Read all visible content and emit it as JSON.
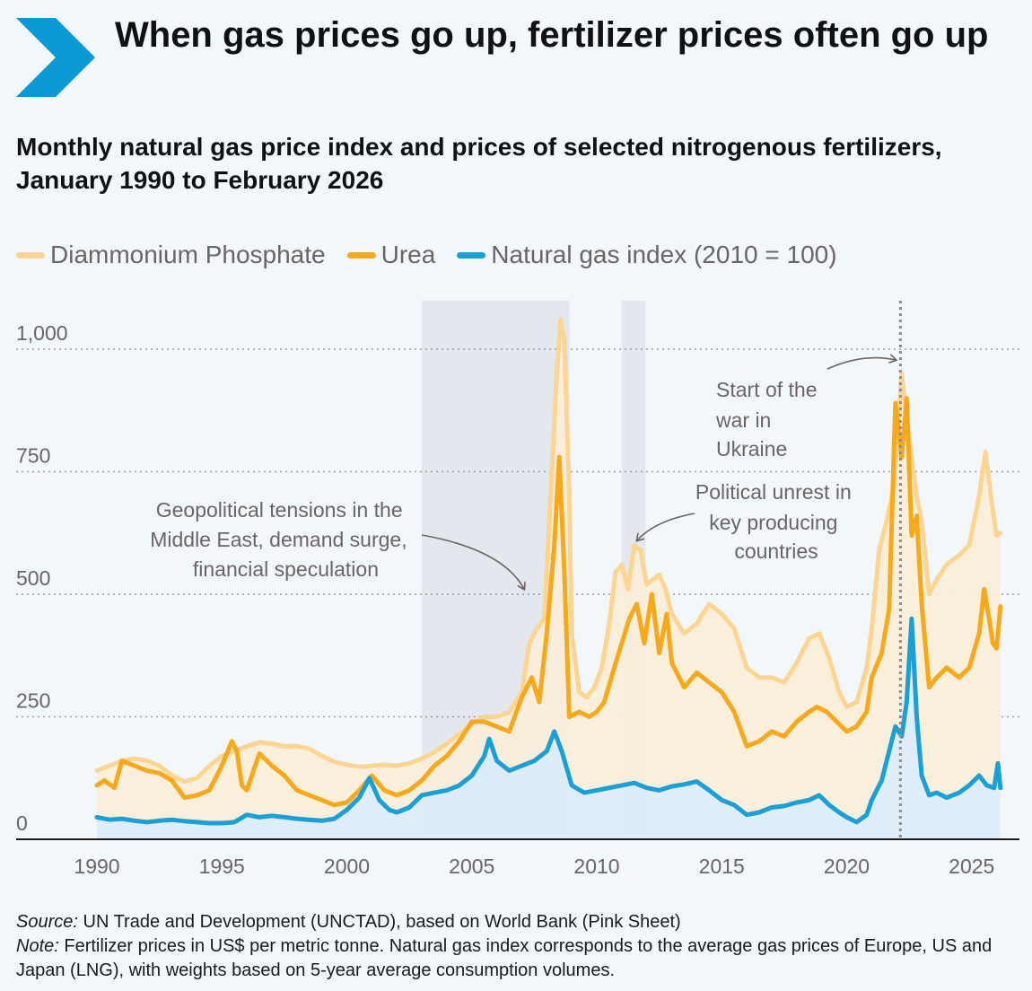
{
  "header": {
    "title": "When gas prices go up, fertilizer prices often go up",
    "subtitle": "Monthly natural gas price index and prices of selected nitrogenous fertilizers, January 1990 to February 2026"
  },
  "legend": [
    {
      "label": "Diammonium Phosphate",
      "color": "#fdd592"
    },
    {
      "label": "Urea",
      "color": "#f7a81b"
    },
    {
      "label": "Natural gas index (2010 = 100)",
      "color": "#1a9fd6"
    }
  ],
  "footer": {
    "source_label": "Source:",
    "source_text": "UN Trade and Development (UNCTAD), based on World Bank (Pink Sheet)",
    "note_label": "Note:",
    "note_text": "Fertilizer prices in US$ per metric tonne. Natural gas index corresponds to the average gas prices of Europe, US and Japan (LNG), with weights based on 5-year average consumption volumes."
  },
  "chart_data": {
    "type": "line",
    "title": "When gas prices go up, fertilizer prices often go up",
    "xlim": [
      1989.8,
      2026.6
    ],
    "ylim": [
      0,
      1050
    ],
    "yticks": [
      0,
      250,
      500,
      750,
      1000
    ],
    "ytick_labels": [
      "0",
      "250",
      "500",
      "750",
      "1,000"
    ],
    "xticks": [
      1990,
      1995,
      2000,
      2005,
      2010,
      2015,
      2020,
      2025
    ],
    "xtick_labels": [
      "1990",
      "1995",
      "2000",
      "2005",
      "2010",
      "2015",
      "2020",
      "2025"
    ],
    "shaded_periods": [
      [
        2003.0,
        2008.9
      ],
      [
        2011.0,
        2011.95
      ]
    ],
    "event_line": {
      "x": 2022.15,
      "label": "Start of the war in Ukraine"
    },
    "annotations": [
      {
        "text": "Geopolitical tensions in the Middle East, demand surge, financial speculation"
      },
      {
        "text": "Political unrest in key producing countries"
      },
      {
        "text": "Start of the war in Ukraine"
      }
    ],
    "series": [
      {
        "name": "Diammonium Phosphate",
        "color": "#fdd592",
        "points": [
          [
            1990,
            140
          ],
          [
            1990.5,
            150
          ],
          [
            1991,
            160
          ],
          [
            1991.5,
            165
          ],
          [
            1992,
            160
          ],
          [
            1992.5,
            150
          ],
          [
            1993,
            130
          ],
          [
            1993.5,
            118
          ],
          [
            1994,
            125
          ],
          [
            1994.5,
            150
          ],
          [
            1995,
            170
          ],
          [
            1995.5,
            180
          ],
          [
            1996,
            190
          ],
          [
            1996.5,
            198
          ],
          [
            1997,
            195
          ],
          [
            1997.5,
            190
          ],
          [
            1998,
            190
          ],
          [
            1998.5,
            185
          ],
          [
            1999,
            170
          ],
          [
            1999.5,
            158
          ],
          [
            2000,
            152
          ],
          [
            2000.5,
            148
          ],
          [
            2001,
            150
          ],
          [
            2001.5,
            152
          ],
          [
            2002,
            150
          ],
          [
            2002.5,
            155
          ],
          [
            2003,
            165
          ],
          [
            2003.5,
            178
          ],
          [
            2004,
            195
          ],
          [
            2004.5,
            215
          ],
          [
            2005,
            235
          ],
          [
            2005.5,
            250
          ],
          [
            2006,
            250
          ],
          [
            2006.5,
            260
          ],
          [
            2007,
            300
          ],
          [
            2007.3,
            400
          ],
          [
            2007.6,
            430
          ],
          [
            2007.9,
            450
          ],
          [
            2008.15,
            700
          ],
          [
            2008.4,
            950
          ],
          [
            2008.55,
            1060
          ],
          [
            2008.7,
            1020
          ],
          [
            2008.9,
            700
          ],
          [
            2009,
            420
          ],
          [
            2009.3,
            300
          ],
          [
            2009.6,
            290
          ],
          [
            2009.9,
            310
          ],
          [
            2010.2,
            350
          ],
          [
            2010.5,
            440
          ],
          [
            2010.75,
            545
          ],
          [
            2011,
            560
          ],
          [
            2011.25,
            510
          ],
          [
            2011.5,
            600
          ],
          [
            2011.75,
            590
          ],
          [
            2012,
            520
          ],
          [
            2012.5,
            540
          ],
          [
            2012.75,
            510
          ],
          [
            2013,
            460
          ],
          [
            2013.5,
            420
          ],
          [
            2014,
            440
          ],
          [
            2014.5,
            480
          ],
          [
            2015,
            460
          ],
          [
            2015.5,
            430
          ],
          [
            2016,
            350
          ],
          [
            2016.5,
            330
          ],
          [
            2017,
            330
          ],
          [
            2017.5,
            320
          ],
          [
            2018,
            360
          ],
          [
            2018.5,
            410
          ],
          [
            2018.9,
            420
          ],
          [
            2019.3,
            370
          ],
          [
            2019.7,
            300
          ],
          [
            2020,
            270
          ],
          [
            2020.4,
            280
          ],
          [
            2020.8,
            350
          ],
          [
            2021,
            430
          ],
          [
            2021.3,
            590
          ],
          [
            2021.6,
            650
          ],
          [
            2021.9,
            720
          ],
          [
            2022.2,
            950
          ],
          [
            2022.5,
            820
          ],
          [
            2022.8,
            700
          ],
          [
            2023,
            650
          ],
          [
            2023.3,
            500
          ],
          [
            2023.6,
            530
          ],
          [
            2024,
            560
          ],
          [
            2024.5,
            580
          ],
          [
            2024.9,
            600
          ],
          [
            2025.3,
            700
          ],
          [
            2025.55,
            790
          ],
          [
            2025.8,
            690
          ],
          [
            2026.0,
            620
          ],
          [
            2026.15,
            625
          ]
        ]
      },
      {
        "name": "Urea",
        "color": "#f7a81b",
        "points": [
          [
            1990,
            110
          ],
          [
            1990.3,
            120
          ],
          [
            1990.7,
            105
          ],
          [
            1991,
            160
          ],
          [
            1991.5,
            150
          ],
          [
            1992,
            140
          ],
          [
            1992.5,
            135
          ],
          [
            1993,
            120
          ],
          [
            1993.5,
            85
          ],
          [
            1994,
            90
          ],
          [
            1994.5,
            100
          ],
          [
            1995,
            150
          ],
          [
            1995.4,
            200
          ],
          [
            1995.6,
            180
          ],
          [
            1995.8,
            110
          ],
          [
            1996,
            100
          ],
          [
            1996.5,
            175
          ],
          [
            1996.8,
            160
          ],
          [
            1997,
            150
          ],
          [
            1997.5,
            130
          ],
          [
            1998,
            100
          ],
          [
            1998.5,
            90
          ],
          [
            1999,
            80
          ],
          [
            1999.5,
            70
          ],
          [
            2000,
            75
          ],
          [
            2000.5,
            100
          ],
          [
            2001,
            130
          ],
          [
            2001.5,
            100
          ],
          [
            2002,
            90
          ],
          [
            2002.5,
            100
          ],
          [
            2003,
            120
          ],
          [
            2003.5,
            150
          ],
          [
            2004,
            170
          ],
          [
            2004.5,
            200
          ],
          [
            2005,
            240
          ],
          [
            2005.5,
            240
          ],
          [
            2006,
            230
          ],
          [
            2006.5,
            220
          ],
          [
            2007,
            290
          ],
          [
            2007.4,
            330
          ],
          [
            2007.7,
            280
          ],
          [
            2008,
            420
          ],
          [
            2008.3,
            600
          ],
          [
            2008.5,
            780
          ],
          [
            2008.7,
            550
          ],
          [
            2008.9,
            250
          ],
          [
            2009.3,
            260
          ],
          [
            2009.7,
            250
          ],
          [
            2010,
            260
          ],
          [
            2010.3,
            280
          ],
          [
            2010.7,
            350
          ],
          [
            2011,
            400
          ],
          [
            2011.3,
            450
          ],
          [
            2011.6,
            480
          ],
          [
            2011.9,
            400
          ],
          [
            2012.2,
            500
          ],
          [
            2012.5,
            380
          ],
          [
            2012.8,
            460
          ],
          [
            2013,
            360
          ],
          [
            2013.5,
            310
          ],
          [
            2014,
            340
          ],
          [
            2014.5,
            320
          ],
          [
            2015,
            300
          ],
          [
            2015.5,
            260
          ],
          [
            2016,
            190
          ],
          [
            2016.5,
            200
          ],
          [
            2017,
            220
          ],
          [
            2017.5,
            210
          ],
          [
            2018,
            240
          ],
          [
            2018.5,
            260
          ],
          [
            2018.8,
            270
          ],
          [
            2019.2,
            260
          ],
          [
            2019.6,
            240
          ],
          [
            2020,
            220
          ],
          [
            2020.4,
            230
          ],
          [
            2020.8,
            260
          ],
          [
            2021,
            330
          ],
          [
            2021.4,
            380
          ],
          [
            2021.7,
            470
          ],
          [
            2021.95,
            890
          ],
          [
            2022.2,
            780
          ],
          [
            2022.4,
            900
          ],
          [
            2022.6,
            620
          ],
          [
            2022.8,
            660
          ],
          [
            2023,
            480
          ],
          [
            2023.3,
            310
          ],
          [
            2023.6,
            330
          ],
          [
            2024,
            350
          ],
          [
            2024.5,
            330
          ],
          [
            2024.9,
            350
          ],
          [
            2025.3,
            420
          ],
          [
            2025.5,
            510
          ],
          [
            2025.7,
            450
          ],
          [
            2025.85,
            400
          ],
          [
            2026.0,
            390
          ],
          [
            2026.15,
            475
          ]
        ]
      },
      {
        "name": "Natural gas index (2010 = 100)",
        "color": "#1a9fd6",
        "points": [
          [
            1990,
            45
          ],
          [
            1990.5,
            40
          ],
          [
            1991,
            42
          ],
          [
            1991.5,
            38
          ],
          [
            1992,
            35
          ],
          [
            1992.5,
            38
          ],
          [
            1993,
            40
          ],
          [
            1993.5,
            37
          ],
          [
            1994,
            35
          ],
          [
            1994.5,
            33
          ],
          [
            1995,
            33
          ],
          [
            1995.5,
            35
          ],
          [
            1996,
            50
          ],
          [
            1996.5,
            45
          ],
          [
            1997,
            48
          ],
          [
            1997.5,
            45
          ],
          [
            1998,
            42
          ],
          [
            1998.5,
            40
          ],
          [
            1999,
            38
          ],
          [
            1999.5,
            42
          ],
          [
            2000,
            60
          ],
          [
            2000.5,
            85
          ],
          [
            2000.9,
            125
          ],
          [
            2001.3,
            80
          ],
          [
            2001.7,
            60
          ],
          [
            2002,
            55
          ],
          [
            2002.5,
            65
          ],
          [
            2003,
            90
          ],
          [
            2003.5,
            95
          ],
          [
            2004,
            100
          ],
          [
            2004.5,
            110
          ],
          [
            2005,
            130
          ],
          [
            2005.5,
            170
          ],
          [
            2005.7,
            205
          ],
          [
            2006,
            160
          ],
          [
            2006.5,
            140
          ],
          [
            2007,
            150
          ],
          [
            2007.5,
            160
          ],
          [
            2008,
            180
          ],
          [
            2008.3,
            220
          ],
          [
            2008.6,
            180
          ],
          [
            2009,
            110
          ],
          [
            2009.5,
            95
          ],
          [
            2010,
            100
          ],
          [
            2010.5,
            105
          ],
          [
            2011,
            110
          ],
          [
            2011.5,
            115
          ],
          [
            2012,
            105
          ],
          [
            2012.5,
            100
          ],
          [
            2013,
            108
          ],
          [
            2013.5,
            112
          ],
          [
            2014,
            118
          ],
          [
            2014.5,
            100
          ],
          [
            2015,
            80
          ],
          [
            2015.5,
            70
          ],
          [
            2016,
            50
          ],
          [
            2016.5,
            55
          ],
          [
            2017,
            65
          ],
          [
            2017.5,
            68
          ],
          [
            2018,
            75
          ],
          [
            2018.5,
            80
          ],
          [
            2018.9,
            90
          ],
          [
            2019.3,
            70
          ],
          [
            2019.7,
            55
          ],
          [
            2020,
            45
          ],
          [
            2020.4,
            35
          ],
          [
            2020.8,
            50
          ],
          [
            2021,
            80
          ],
          [
            2021.4,
            120
          ],
          [
            2021.7,
            180
          ],
          [
            2021.95,
            230
          ],
          [
            2022.2,
            210
          ],
          [
            2022.4,
            280
          ],
          [
            2022.6,
            450
          ],
          [
            2022.8,
            250
          ],
          [
            2023,
            130
          ],
          [
            2023.3,
            90
          ],
          [
            2023.6,
            95
          ],
          [
            2024,
            85
          ],
          [
            2024.5,
            95
          ],
          [
            2024.9,
            110
          ],
          [
            2025.3,
            130
          ],
          [
            2025.6,
            110
          ],
          [
            2025.9,
            105
          ],
          [
            2026.05,
            155
          ],
          [
            2026.15,
            105
          ]
        ]
      }
    ]
  }
}
